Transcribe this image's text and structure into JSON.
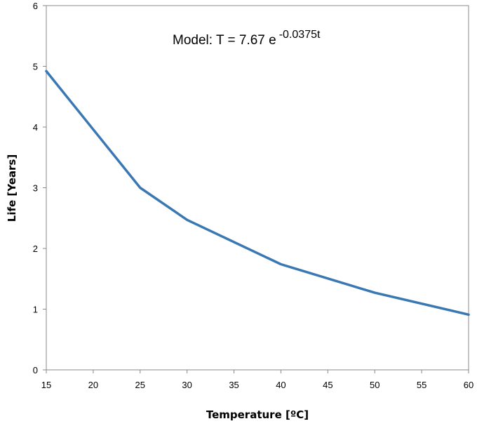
{
  "chart_data": {
    "type": "line",
    "x": [
      15,
      25,
      30,
      40,
      50,
      60
    ],
    "series": [
      {
        "values": [
          4.92,
          3.0,
          2.47,
          1.74,
          1.27,
          0.91
        ],
        "color": "#3a78b3"
      }
    ],
    "xlabel": "Temperature [ºC]",
    "ylabel": "Life [Years]",
    "xlim": [
      15,
      60
    ],
    "ylim": [
      0,
      6
    ],
    "xticks": [
      15,
      20,
      25,
      30,
      35,
      40,
      45,
      50,
      55,
      60
    ],
    "yticks": [
      0,
      1,
      2,
      3,
      4,
      5,
      6
    ],
    "grid": false,
    "legend": "none",
    "annotation": {
      "prefix": "Model:  T = 7.67 e",
      "exponent": "-0.0375t"
    }
  }
}
